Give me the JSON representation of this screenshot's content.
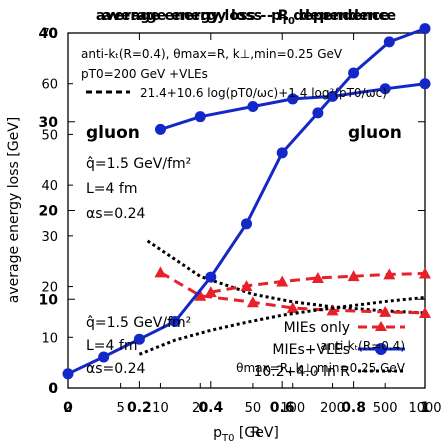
{
  "title_a": "average energy loss - R dependence",
  "title_b": "average energy loss - p",
  "title_b_sub": "T0",
  "title_b_tail": " dependence",
  "xlabel_a": "R",
  "xlabel_b": "p",
  "xlabel_b_sub": "T0",
  "xlabel_b_tail": " [GeV]",
  "ylabel": "average energy loss [GeV]",
  "colors": {
    "red": "#e8202a",
    "blue": "#1428c8",
    "black": "#000000"
  },
  "top_params": "anti-kₜ(R=0.4), θmax=R, k⊥,min=0.25 GeV",
  "top_legend_blue": "pT0=200 GeV +VLEs",
  "top_legend_black": "21.4+10.6 log(pT0/ωc)+1.4 log²(pT0/ωc)",
  "gluon_left": "gluon",
  "gluon_right": "gluon",
  "left_params_top": [
    "q̂=1.5 GeV/fm²",
    "L=4 fm",
    "αs=0.24"
  ],
  "left_params_bottom": [
    "q̂=1.5 GeV/fm²",
    "L=4 fm",
    "αs=0.24"
  ],
  "bottom_legend": [
    "MIEs only",
    "MIEs+VLEs",
    "10.2+4.0 ln R"
  ],
  "bottom_params_overlay": [
    "anti-kₜ(R=0.4)",
    "θmax=R, k⊥,min=0.25 GeV"
  ],
  "chart_data": [
    {
      "type": "line",
      "title": "average energy loss - R dependence",
      "xlabel": "R",
      "ylabel": "average energy loss [GeV]",
      "xlim": [
        0,
        1
      ],
      "ylim": [
        0,
        40
      ],
      "x_ticks": [
        "0",
        "0.2",
        "0.4",
        "0.6",
        "0.8",
        "1"
      ],
      "y_ticks": [
        "0",
        "10",
        "20",
        "30",
        "40"
      ],
      "series": [
        {
          "name": "MIEs only",
          "color": "#e8202a",
          "style": "dashed",
          "marker": "triangle",
          "x": [
            0.4,
            0.5,
            0.6,
            0.7,
            0.8,
            0.9,
            1.0
          ],
          "y": [
            10.8,
            11.5,
            12.0,
            12.4,
            12.6,
            12.8,
            12.9
          ]
        },
        {
          "name": "MIEs+VLEs",
          "color": "#1428c8",
          "style": "solid",
          "marker": "circle",
          "x": [
            0.0,
            0.1,
            0.2,
            0.3,
            0.4,
            0.5,
            0.6,
            0.7,
            0.8,
            0.9,
            1.0
          ],
          "y": [
            1.6,
            3.5,
            5.5,
            7.5,
            12.5,
            18.5,
            26.5,
            31.0,
            35.5,
            39.0,
            40.5
          ]
        },
        {
          "name": "10.2+4.0 ln R",
          "color": "#000000",
          "style": "dotted",
          "marker": "none",
          "x": [
            0.2,
            0.3,
            0.4,
            0.5,
            0.6,
            0.7,
            0.8,
            0.9,
            1.0
          ],
          "y": [
            3.8,
            5.4,
            6.5,
            7.4,
            8.2,
            8.8,
            9.3,
            9.8,
            10.2
          ]
        }
      ]
    },
    {
      "type": "line",
      "title": "average energy loss - pT0 dependence",
      "xlabel": "pT0 [GeV]",
      "ylabel": "average energy loss [GeV]",
      "xlim": [
        2,
        1000
      ],
      "ylim": [
        0,
        70
      ],
      "xscale": "log",
      "x_ticks": [
        "2",
        "5",
        "10",
        "20",
        "50",
        "100",
        "200",
        "500",
        "1000"
      ],
      "y_ticks": [
        "0",
        "10",
        "20",
        "30",
        "40",
        "50",
        "60",
        "70"
      ],
      "series": [
        {
          "name": "",
          "color": "#e8202a",
          "style": "dashed",
          "marker": "triangle",
          "x": [
            10,
            20,
            50,
            100,
            200,
            500,
            1000
          ],
          "y": [
            22.8,
            18.2,
            16.9,
            15.8,
            15.3,
            15.0,
            14.8
          ]
        },
        {
          "name": "pT0=200 GeV +VLEs",
          "color": "#1428c8",
          "style": "solid",
          "marker": "circle",
          "x": [
            10,
            20,
            50,
            100,
            200,
            500,
            1000
          ],
          "y": [
            51.0,
            53.5,
            55.5,
            57.0,
            57.5,
            59.0,
            60.0
          ]
        },
        {
          "name": "21.4+10.6 log(pT0/ωc)+1.4 log²(pT0/ωc)",
          "color": "#000000",
          "style": "dotted",
          "marker": "none",
          "x": [
            8,
            20,
            50,
            100,
            200,
            500,
            1000
          ],
          "y": [
            29.0,
            22.0,
            18.5,
            17.0,
            16.0,
            15.2,
            14.8
          ]
        }
      ]
    }
  ]
}
